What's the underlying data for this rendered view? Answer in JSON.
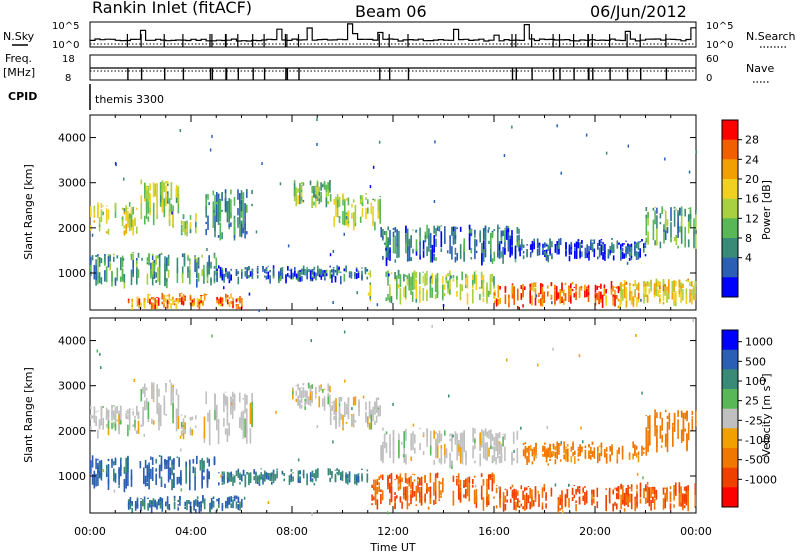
{
  "header": {
    "station": "Rankin Inlet (fitACF)",
    "beam": "Beam 06",
    "date": "06/Jun/2012"
  },
  "strips": {
    "nsky_label": "N.Sky",
    "nsky_ticks": [
      "10^5",
      "10^0"
    ],
    "nsearch_label": "N.Search",
    "nsearch_ticks": [
      "10^5",
      "10^0"
    ],
    "freq_label": "Freq.",
    "freq_unit": "[MHz]",
    "freq_ticks": [
      "18",
      "8"
    ],
    "nave_label": "Nave",
    "nave_ticks": [
      "60",
      "0"
    ],
    "cpid_label": "CPID",
    "cpid_value": "themis 3300"
  },
  "chart_data": [
    {
      "type": "heatmap",
      "name": "power",
      "ylabel": "Slant Range [km]",
      "ylim": [
        180,
        4500
      ],
      "yticks": [
        "4000",
        "3000",
        "2000",
        "1000"
      ],
      "xlabel": "Time UT",
      "xticks": [
        "00:00",
        "04:00",
        "08:00",
        "12:00",
        "16:00",
        "20:00",
        "00:00"
      ],
      "colorbar_label": "Power [dB]",
      "colorbar_ticks": [
        "28",
        "24",
        "20",
        "16",
        "12",
        "8",
        "4"
      ],
      "colorbar_colors": [
        "#0000ff",
        "#2a5fb4",
        "#3a8a78",
        "#58b858",
        "#a8d040",
        "#f0d020",
        "#f0a000",
        "#f06000",
        "#ff0000"
      ],
      "bands": [
        {
          "t0": 0.0,
          "t1": 2.0,
          "r0": 1850,
          "r1": 2500,
          "p": 18
        },
        {
          "t0": 2.0,
          "t1": 3.5,
          "r0": 2050,
          "r1": 3000,
          "p": 16
        },
        {
          "t0": 3.6,
          "t1": 4.2,
          "r0": 1800,
          "r1": 2300,
          "p": 14
        },
        {
          "t0": 4.5,
          "t1": 6.5,
          "r0": 1700,
          "r1": 2800,
          "p": 10
        },
        {
          "t0": 8.0,
          "t1": 9.5,
          "r0": 2500,
          "r1": 3000,
          "p": 14
        },
        {
          "t0": 9.5,
          "t1": 11.5,
          "r0": 2000,
          "r1": 2700,
          "p": 16
        },
        {
          "t0": 11.5,
          "t1": 17.0,
          "r0": 1200,
          "r1": 2000,
          "p": 8
        },
        {
          "t0": 17.0,
          "t1": 22.0,
          "r0": 1300,
          "r1": 1700,
          "p": 6
        },
        {
          "t0": 22.0,
          "t1": 24.0,
          "r0": 1500,
          "r1": 2400,
          "p": 12
        },
        {
          "t0": 0.0,
          "t1": 5.0,
          "r0": 700,
          "r1": 1400,
          "p": 12
        },
        {
          "t0": 5.0,
          "t1": 11.0,
          "r0": 800,
          "r1": 1100,
          "p": 8
        },
        {
          "t0": 1.5,
          "t1": 6.0,
          "r0": 200,
          "r1": 500,
          "p": 24
        },
        {
          "t0": 11.0,
          "t1": 16.0,
          "r0": 300,
          "r1": 1000,
          "p": 16
        },
        {
          "t0": 16.0,
          "t1": 21.0,
          "r0": 220,
          "r1": 750,
          "p": 26
        },
        {
          "t0": 21.0,
          "t1": 24.0,
          "r0": 220,
          "r1": 800,
          "p": 20
        }
      ]
    },
    {
      "type": "heatmap",
      "name": "velocity",
      "ylabel": "Slant Range [km]",
      "ylim": [
        180,
        4500
      ],
      "yticks": [
        "4000",
        "3000",
        "2000",
        "1000"
      ],
      "xlabel": "Time UT",
      "xticks": [
        "00:00",
        "04:00",
        "08:00",
        "12:00",
        "16:00",
        "20:00",
        "00:00"
      ],
      "colorbar_label": "Velocity [m s",
      "colorbar_label_sup": "-1",
      "colorbar_label_end": "]",
      "colorbar_ticks": [
        "1000",
        "500",
        "100",
        "25",
        "-25",
        "-100",
        "-500",
        "-1000"
      ],
      "colorbar_colors": [
        "#ff0000",
        "#f04000",
        "#f07800",
        "#f0a000",
        "#c0c0c0",
        "#58b858",
        "#3a8a78",
        "#2a5fb4",
        "#0000ff"
      ],
      "bands": [
        {
          "t0": 0.0,
          "t1": 2.0,
          "r0": 1850,
          "r1": 2500,
          "v": 0
        },
        {
          "t0": 2.0,
          "t1": 3.5,
          "r0": 2050,
          "r1": 3000,
          "v": 0
        },
        {
          "t0": 3.6,
          "t1": 4.2,
          "r0": 1800,
          "r1": 2300,
          "v": 0
        },
        {
          "t0": 4.5,
          "t1": 6.5,
          "r0": 1700,
          "r1": 2800,
          "v": 0
        },
        {
          "t0": 8.0,
          "t1": 9.5,
          "r0": 2500,
          "r1": 3000,
          "v": 0
        },
        {
          "t0": 9.5,
          "t1": 11.5,
          "r0": 2000,
          "r1": 2700,
          "v": 0
        },
        {
          "t0": 11.5,
          "t1": 17.0,
          "r0": 1200,
          "r1": 2000,
          "v": 0
        },
        {
          "t0": 17.0,
          "t1": 22.0,
          "r0": 1300,
          "r1": 1700,
          "v": -150
        },
        {
          "t0": 22.0,
          "t1": 24.0,
          "r0": 1500,
          "r1": 2400,
          "v": -200
        },
        {
          "t0": 0.0,
          "t1": 5.0,
          "r0": 700,
          "r1": 1400,
          "v": 150
        },
        {
          "t0": 5.0,
          "t1": 11.0,
          "r0": 800,
          "r1": 1100,
          "v": 80
        },
        {
          "t0": 1.5,
          "t1": 6.0,
          "r0": 200,
          "r1": 500,
          "v": 120
        },
        {
          "t0": 11.0,
          "t1": 16.0,
          "r0": 300,
          "r1": 1000,
          "v": -300
        },
        {
          "t0": 16.0,
          "t1": 21.0,
          "r0": 220,
          "r1": 750,
          "v": -400
        },
        {
          "t0": 21.0,
          "t1": 24.0,
          "r0": 220,
          "r1": 800,
          "v": -300
        }
      ]
    }
  ]
}
